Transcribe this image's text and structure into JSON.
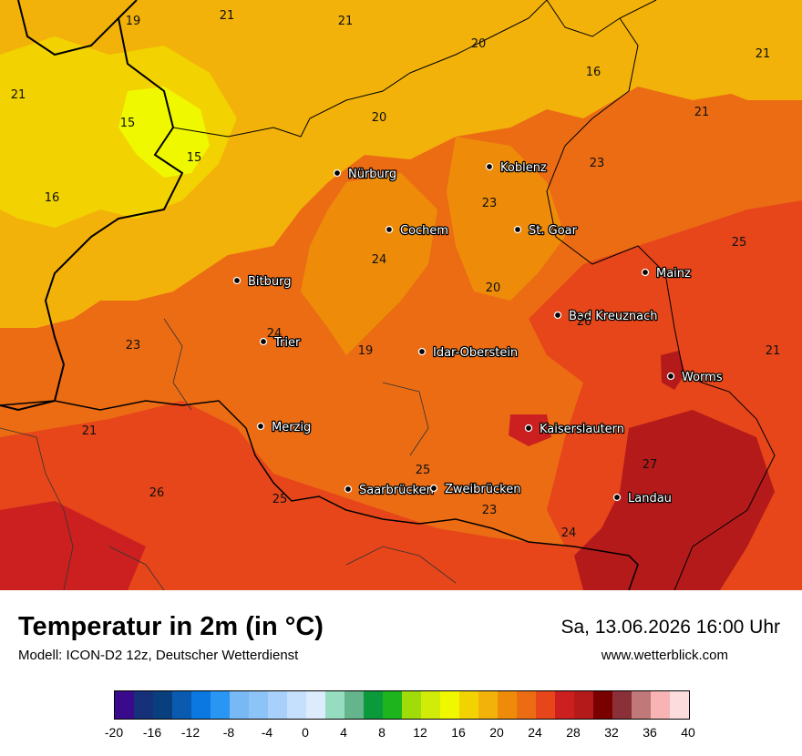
{
  "map": {
    "cities": [
      {
        "name": "Nürburg",
        "key": "nurburg"
      },
      {
        "name": "Koblenz",
        "key": "koblenz"
      },
      {
        "name": "Cochem",
        "key": "cochem"
      },
      {
        "name": "St. Goar",
        "key": "st-goar"
      },
      {
        "name": "Mainz",
        "key": "mainz"
      },
      {
        "name": "Bitburg",
        "key": "bitburg"
      },
      {
        "name": "Bad Kreuznach",
        "key": "bad-kreuznach"
      },
      {
        "name": "Trier",
        "key": "trier"
      },
      {
        "name": "Idar-Oberstein",
        "key": "idar-oberstein"
      },
      {
        "name": "Worms",
        "key": "worms"
      },
      {
        "name": "Merzig",
        "key": "merzig"
      },
      {
        "name": "Kaiserslautern",
        "key": "kaiserslautern"
      },
      {
        "name": "Saarbrücken",
        "key": "saarbruecken"
      },
      {
        "name": "Zweibrücken",
        "key": "zweibruecken"
      },
      {
        "name": "Landau",
        "key": "landau"
      }
    ],
    "isotherm_labels": [
      "19",
      "21",
      "21",
      "20",
      "21",
      "16",
      "21",
      "20",
      "15",
      "21",
      "15",
      "23",
      "16",
      "23",
      "25",
      "24",
      "20",
      "26",
      "24",
      "23",
      "19",
      "21",
      "21",
      "25",
      "27",
      "26",
      "25",
      "23",
      "24"
    ]
  },
  "footer": {
    "title": "Temperatur in 2m (in °C)",
    "subtitle": "Modell: ICON-D2 12z, Deutscher Wetterdienst",
    "datetime": "Sa, 13.06.2026 16:00 Uhr",
    "website": "www.wetterblick.com"
  },
  "colorbar": {
    "colors": [
      "#3a0a8c",
      "#16307a",
      "#0a3f7e",
      "#0a5bb0",
      "#0a78e0",
      "#2a96f4",
      "#78b8f4",
      "#8cc4f8",
      "#a8d0fa",
      "#c4e0fc",
      "#dcecfc",
      "#96dcc0",
      "#64b48c",
      "#0a9a3c",
      "#1eb41e",
      "#a0dc0a",
      "#d2ec0a",
      "#f0f800",
      "#f2d200",
      "#f2b20a",
      "#ee8c0a",
      "#ec6c14",
      "#e6461a",
      "#cc2020",
      "#b41a1a",
      "#7a0000",
      "#8a3038",
      "#c07878",
      "#f8b4b4",
      "#fcdcdc"
    ],
    "ticks": [
      "-20",
      "-16",
      "-12",
      "-8",
      "-4",
      "0",
      "4",
      "8",
      "12",
      "16",
      "20",
      "24",
      "28",
      "32",
      "36",
      "40"
    ]
  }
}
